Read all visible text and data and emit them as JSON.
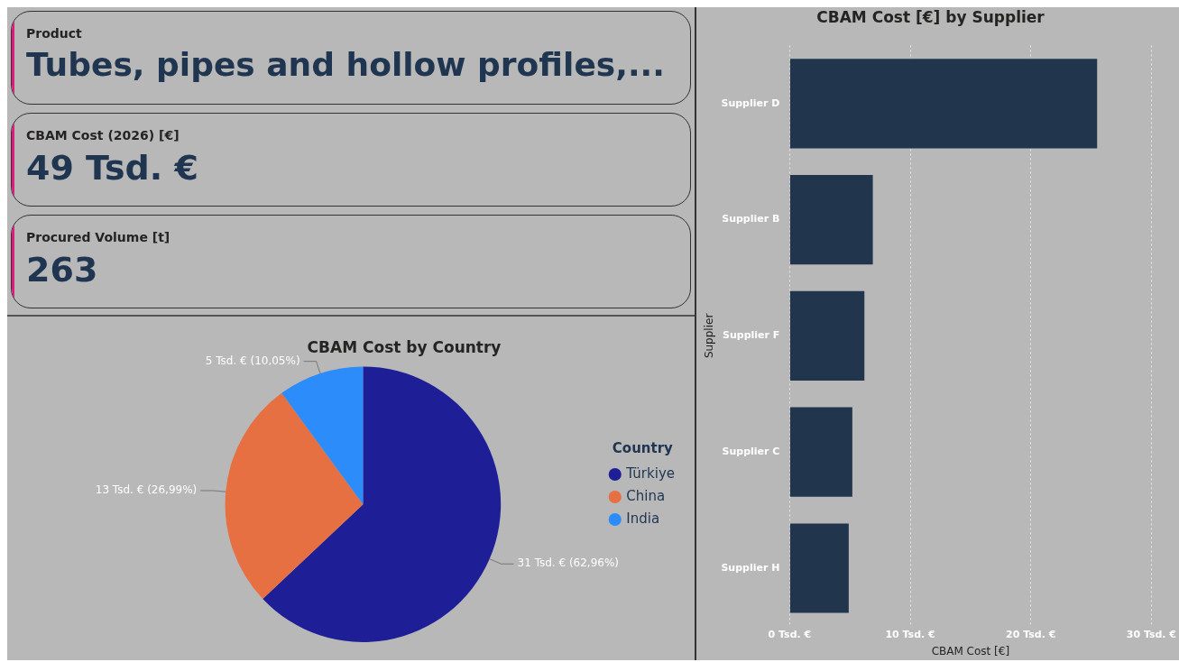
{
  "chart_data": [
    {
      "type": "other",
      "annotations": [
        "Product",
        "Tubes, pipes and hollow profiles,...",
        "CBAM Cost (2026) [€]",
        "49 Tsd. €",
        "Procured Volume [t]",
        "263"
      ]
    },
    {
      "type": "pie",
      "title": "CBAM Cost by Country",
      "categories": [
        "Türkiye",
        "China",
        "India"
      ],
      "values": [
        62.96,
        26.99,
        10.05
      ],
      "colors": [
        "#1e1f96",
        "#e67042",
        "#2b8cfa"
      ],
      "value_labels": [
        "31 Tsd. € (62,96%)",
        "13 Tsd. € (26,99%)",
        "5 Tsd. € (10,05%)"
      ],
      "legend": "right",
      "legend_title": "Country"
    },
    {
      "type": "bar",
      "title": "CBAM Cost [€] by Supplier",
      "orientation": "horizontal",
      "categories": [
        "Supplier D",
        "Supplier B",
        "Supplier F",
        "Supplier C",
        "Supplier H"
      ],
      "values": [
        25.5,
        6.9,
        6.2,
        5.2,
        4.9
      ],
      "color": "#21354d",
      "xlim": [
        0,
        30
      ],
      "xticks": [
        {
          "value": 0,
          "label": "0 Tsd. €"
        },
        {
          "value": 10,
          "label": "10 Tsd. €"
        },
        {
          "value": 20,
          "label": "20 Tsd. €"
        },
        {
          "value": 30,
          "label": "30 Tsd. €"
        }
      ],
      "xlabel": "CBAM Cost [€]",
      "ylabel": "Supplier",
      "grid": "x"
    }
  ]
}
